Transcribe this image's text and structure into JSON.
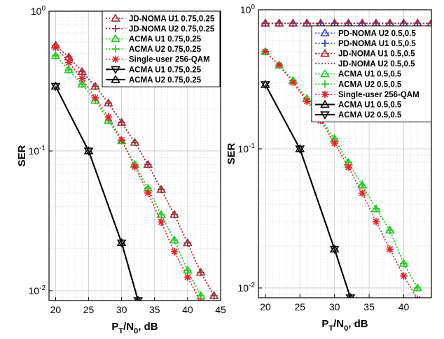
{
  "chart_data": [
    {
      "type": "line",
      "xlabel": {
        "main": "P",
        "sub1": "T",
        "mid": "/N",
        "sub2": "0",
        "tail": ", dB"
      },
      "ylabel": "SER",
      "yscale": "log",
      "grid": true,
      "xlim": [
        19,
        45
      ],
      "ylim": [
        0.0085,
        1
      ],
      "xticks": [
        20,
        25,
        30,
        35,
        40,
        45
      ],
      "yticks": [
        {
          "value": 1,
          "base": "10",
          "exp": "0"
        },
        {
          "value": 0.1,
          "base": "10",
          "exp": "-1"
        },
        {
          "value": 0.01,
          "base": "10",
          "exp": "-2"
        }
      ],
      "legend_position": "top-right",
      "series": [
        {
          "name": "JD-NOMA U1 0.75,0.25",
          "color": "#a0303a",
          "dash": "dot",
          "marker": "triangle-up",
          "x": [
            20,
            22,
            24,
            26,
            28,
            30,
            32,
            34,
            36,
            38,
            40,
            42,
            44
          ],
          "y": [
            0.57,
            0.47,
            0.37,
            0.29,
            0.22,
            0.16,
            0.115,
            0.08,
            0.053,
            0.035,
            0.022,
            0.0135,
            0.0092
          ]
        },
        {
          "name": "JD-NOMA U2 0.75,0.25",
          "color": "#a0303a",
          "dash": "dot",
          "marker": "plus",
          "x": [
            20,
            22,
            24,
            26,
            28,
            30,
            32,
            34,
            36,
            38,
            40,
            42,
            44
          ],
          "y": [
            0.57,
            0.47,
            0.37,
            0.29,
            0.22,
            0.16,
            0.115,
            0.08,
            0.053,
            0.035,
            0.022,
            0.0135,
            0.0092
          ]
        },
        {
          "name": "ACMA U1 0.75,0.25",
          "color": "#22cc22",
          "dash": "dot",
          "marker": "triangle-up",
          "x": [
            20,
            22,
            24,
            26,
            28,
            30,
            32,
            34,
            36,
            38,
            40,
            42
          ],
          "y": [
            0.48,
            0.38,
            0.3,
            0.23,
            0.165,
            0.118,
            0.08,
            0.054,
            0.035,
            0.023,
            0.014,
            0.0092
          ]
        },
        {
          "name": "ACMA U2 0.75,0.25",
          "color": "#22cc22",
          "dash": "dot",
          "marker": "plus",
          "x": [
            20,
            22,
            24,
            26,
            28,
            30,
            32,
            34,
            36,
            38,
            40,
            42
          ],
          "y": [
            0.48,
            0.38,
            0.3,
            0.23,
            0.165,
            0.118,
            0.08,
            0.054,
            0.035,
            0.023,
            0.014,
            0.0092
          ]
        },
        {
          "name": "Single-user 256-QAM",
          "color": "#e8202a",
          "dash": "dot",
          "marker": "asterisk",
          "x": [
            20,
            22,
            24,
            26,
            28,
            30,
            32,
            34,
            36,
            38,
            40,
            42
          ],
          "y": [
            0.55,
            0.43,
            0.33,
            0.24,
            0.175,
            0.12,
            0.077,
            0.05,
            0.031,
            0.019,
            0.0125,
            0.0083
          ]
        },
        {
          "name": "ACMA U1 0.75,0.25",
          "color": "#000000",
          "dash": "solid",
          "marker": "triangle-down",
          "x": [
            20,
            25,
            30,
            32.5
          ],
          "y": [
            0.29,
            0.1,
            0.022,
            0.0085
          ]
        },
        {
          "name": "ACMA U2 0.75,0.25",
          "color": "#000000",
          "dash": "solid",
          "marker": "triangle-up",
          "x": [
            20,
            25,
            30,
            32.5
          ],
          "y": [
            0.29,
            0.1,
            0.022,
            0.0085
          ]
        }
      ]
    },
    {
      "type": "line",
      "xlabel": {
        "main": "P",
        "sub1": "T",
        "mid": "/N",
        "sub2": "0",
        "tail": ", dB"
      },
      "ylabel": "SER",
      "yscale": "log",
      "grid": true,
      "xlim": [
        19,
        44
      ],
      "ylim": [
        0.0085,
        1
      ],
      "xticks": [
        20,
        25,
        30,
        35,
        40
      ],
      "yticks": [
        {
          "value": 1,
          "base": "10",
          "exp": "0"
        },
        {
          "value": 0.1,
          "base": "10",
          "exp": "-1"
        },
        {
          "value": 0.01,
          "base": "10",
          "exp": "-2"
        }
      ],
      "legend_position": "top-right",
      "series": [
        {
          "name": "PD-NOMA U2 0.5,0.5",
          "color": "#3040c0",
          "dash": "dot",
          "marker": "triangle-up",
          "x": [
            20,
            22,
            24,
            26,
            28,
            30,
            32,
            34,
            36,
            38,
            40,
            42,
            44
          ],
          "y": [
            0.8,
            0.8,
            0.8,
            0.8,
            0.8,
            0.8,
            0.8,
            0.8,
            0.8,
            0.8,
            0.8,
            0.8,
            0.8
          ]
        },
        {
          "name": "PD-NOMA U1 0.5,0.5",
          "color": "#3040c0",
          "dash": "dot",
          "marker": "plus",
          "x": [
            20,
            22,
            24,
            26,
            28,
            30,
            32,
            34,
            36,
            38,
            40,
            42,
            44
          ],
          "y": [
            0.8,
            0.8,
            0.8,
            0.8,
            0.8,
            0.8,
            0.8,
            0.8,
            0.8,
            0.8,
            0.8,
            0.8,
            0.8
          ]
        },
        {
          "name": "JD-NOMA U1 0.5,0.5",
          "color": "#b02020",
          "dash": "dot",
          "marker": "triangle-up",
          "x": [
            20,
            22,
            24,
            26,
            28,
            30,
            32,
            34,
            36,
            38,
            40,
            42,
            44
          ],
          "y": [
            0.8,
            0.8,
            0.8,
            0.8,
            0.8,
            0.8,
            0.8,
            0.8,
            0.8,
            0.8,
            0.8,
            0.8,
            0.8
          ]
        },
        {
          "name": "JD-NOMA U2 0.5,0.5",
          "color": "#a0303a",
          "dash": "dot",
          "marker": "none",
          "x": [
            20,
            44
          ],
          "y": [
            0.8,
            0.8
          ]
        },
        {
          "name": "ACMA U1 0.5,0.5",
          "color": "#22cc22",
          "dash": "dot",
          "marker": "triangle-up",
          "x": [
            20,
            22,
            24,
            26,
            28,
            30,
            32,
            34,
            36,
            38,
            40,
            42
          ],
          "y": [
            0.5,
            0.4,
            0.31,
            0.23,
            0.165,
            0.118,
            0.08,
            0.055,
            0.037,
            0.026,
            0.015,
            0.01
          ]
        },
        {
          "name": "ACMA U2 0.5,0.5",
          "color": "#22cc22",
          "dash": "dot",
          "marker": "plus",
          "x": [
            20,
            22,
            24,
            26,
            28,
            30,
            32,
            34,
            36,
            38,
            40,
            42
          ],
          "y": [
            0.5,
            0.4,
            0.31,
            0.23,
            0.165,
            0.118,
            0.08,
            0.055,
            0.037,
            0.026,
            0.015,
            0.01
          ]
        },
        {
          "name": "Single-user 256-QAM",
          "color": "#e8202a",
          "dash": "dot",
          "marker": "asterisk",
          "x": [
            20,
            22,
            24,
            26,
            28,
            30,
            32,
            34,
            36,
            38,
            40,
            42
          ],
          "y": [
            0.5,
            0.4,
            0.3,
            0.22,
            0.16,
            0.11,
            0.074,
            0.048,
            0.03,
            0.019,
            0.0122,
            0.0083
          ]
        },
        {
          "name": "ACMA U1 0.5,0.5",
          "color": "#000000",
          "dash": "solid",
          "marker": "triangle-up",
          "x": [
            20,
            25,
            30,
            32.3
          ],
          "y": [
            0.29,
            0.1,
            0.019,
            0.0085
          ]
        },
        {
          "name": "ACMA U2 0.5,0.5",
          "color": "#000000",
          "dash": "solid",
          "marker": "triangle-down",
          "x": [
            20,
            25,
            30,
            32.3
          ],
          "y": [
            0.29,
            0.1,
            0.019,
            0.0085
          ]
        }
      ]
    }
  ]
}
